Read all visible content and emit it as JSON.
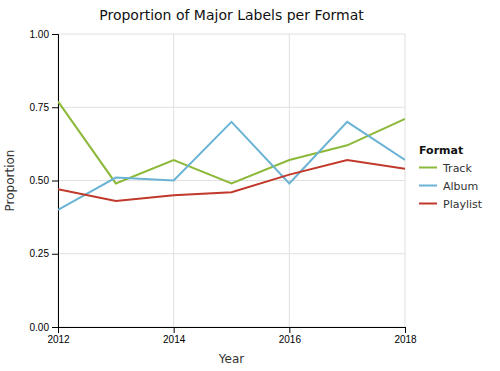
{
  "chart_data": {
    "type": "line",
    "title": "Proportion of Major Labels per Format",
    "xlabel": "Year",
    "ylabel": "Proportion",
    "x": [
      2012,
      2013,
      2014,
      2015,
      2016,
      2017,
      2018
    ],
    "series": [
      {
        "name": "Track",
        "color": "#8db93a",
        "values": [
          0.77,
          0.49,
          0.57,
          0.49,
          0.57,
          0.62,
          0.71
        ]
      },
      {
        "name": "Album",
        "color": "#6ab3d4",
        "values": [
          0.4,
          0.51,
          0.5,
          0.7,
          0.49,
          0.7,
          0.57
        ]
      },
      {
        "name": "Playlist",
        "color": "#c0392b",
        "values": [
          0.47,
          0.43,
          0.45,
          0.46,
          0.52,
          0.57,
          0.54
        ]
      }
    ],
    "xlim": [
      2012,
      2018
    ],
    "xticks": [
      2012,
      2014,
      2016,
      2018
    ],
    "ylim": [
      0,
      1
    ],
    "yticks": [
      {
        "value": 0,
        "label": "0.00"
      },
      0.25,
      {
        "value": 0.5,
        "label": "0.50"
      },
      0.75,
      {
        "value": 1,
        "label": "1.00"
      }
    ],
    "grid": true,
    "legend": "right",
    "legend_title": "Format"
  }
}
